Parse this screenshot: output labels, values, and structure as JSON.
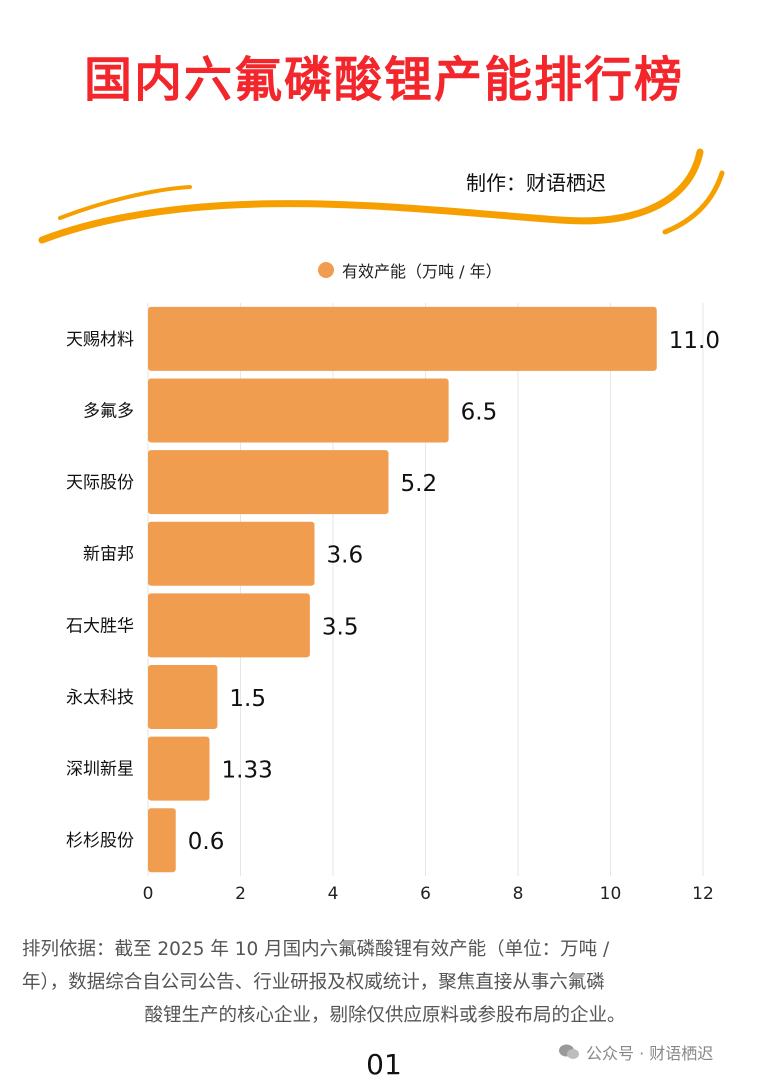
{
  "title": "国内六氟磷酸锂产能排行榜",
  "maker": "制作：财语栖迟",
  "legend_label": "有效产能（万吨 / 年）",
  "notes": {
    "line1": "排列依据：截至 2025 年 10 月国内六氟磷酸锂有效产能（单位：万吨 /",
    "line2": "年），数据综合自公司公告、行业研报及权威统计，聚焦直接从事六氟磷",
    "line3": "酸锂生产的核心企业，剔除仅供应原料或参股布局的企业。"
  },
  "page_number": "01",
  "watermark": "公众号 · 财语栖迟",
  "colors": {
    "title": "#f2262b",
    "bar": "#f09d50",
    "swoosh": "#f5a000"
  },
  "chart_data": {
    "type": "bar",
    "orientation": "horizontal",
    "categories": [
      "天赐材料",
      "多氟多",
      "天际股份",
      "新宙邦",
      "石大胜华",
      "永太科技",
      "深圳新星",
      "杉杉股份"
    ],
    "series": [
      {
        "name": "有效产能（万吨 / 年）",
        "values": [
          11.0,
          6.5,
          5.2,
          3.6,
          3.5,
          1.5,
          1.33,
          0.6
        ]
      }
    ],
    "value_labels": [
      "11.0",
      "6.5",
      "5.2",
      "3.6",
      "3.5",
      "1.5",
      "1.33",
      "0.6"
    ],
    "xlim": [
      0,
      12
    ],
    "xticks": [
      "0",
      "2",
      "4",
      "6",
      "8",
      "10",
      "12"
    ],
    "grid": true,
    "legend_position": "top"
  }
}
